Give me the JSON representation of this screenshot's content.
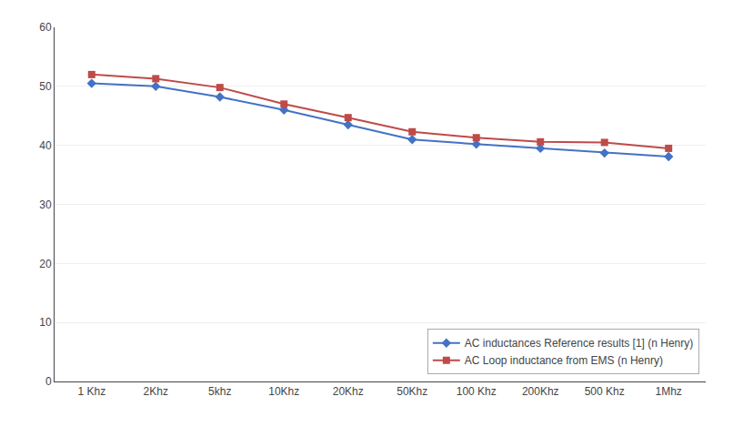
{
  "chart_data": {
    "type": "line",
    "categories": [
      "1 Khz",
      "2Khz",
      "5khz",
      "10Khz",
      "20Khz",
      "50Khz",
      "100 Khz",
      "200Khz",
      "500 Khz",
      "1Mhz"
    ],
    "series": [
      {
        "name": "AC inductances Reference results [1] (n Henry)",
        "color": "#4472C4",
        "marker": "diamond",
        "values": [
          50.5,
          50.0,
          48.2,
          46.0,
          43.5,
          41.0,
          40.2,
          39.5,
          38.7,
          38.1
        ]
      },
      {
        "name": "AC Loop inductance from EMS (n Henry)",
        "color": "#BE4B48",
        "marker": "square",
        "values": [
          52.0,
          51.3,
          49.8,
          47.0,
          44.7,
          42.3,
          41.3,
          40.6,
          40.5,
          39.5
        ]
      }
    ],
    "ylim": [
      0,
      60
    ],
    "yticks": [
      0,
      10,
      20,
      30,
      40,
      50,
      60
    ],
    "grid": true,
    "legend": "lower right"
  }
}
